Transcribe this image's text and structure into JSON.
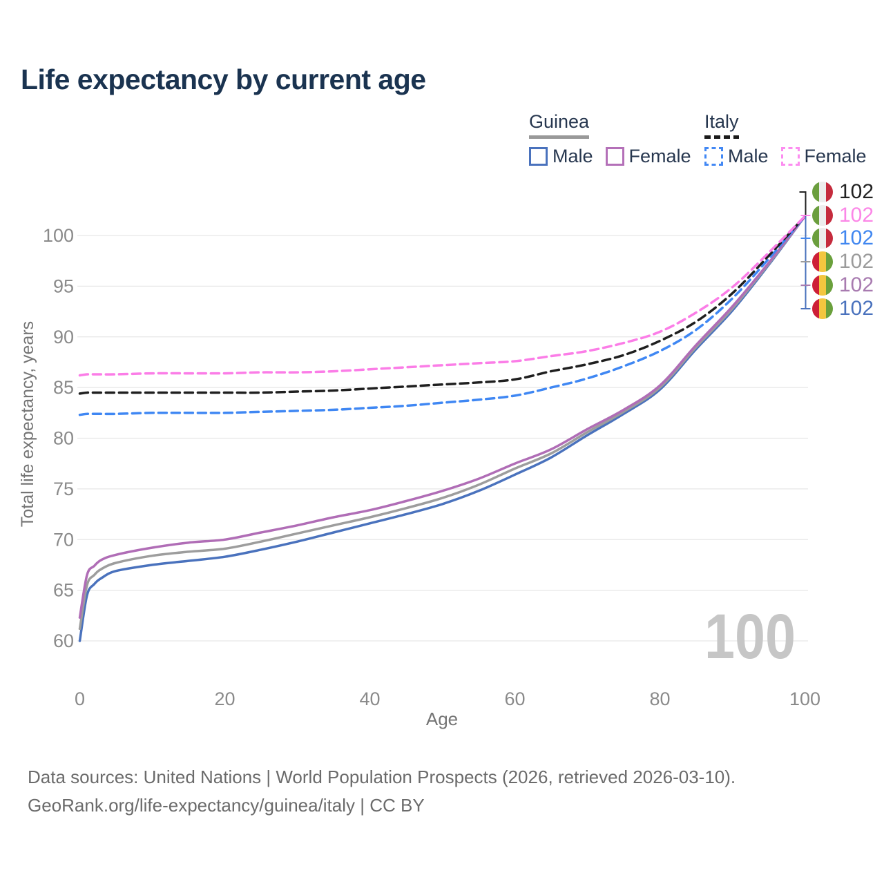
{
  "header": {
    "title": "Life expectancy by current age"
  },
  "legend": {
    "groups": [
      {
        "country": "Guinea",
        "underline_color": "#999999",
        "underline_dashed": false,
        "items": [
          {
            "label": "Male",
            "color": "#4a72bd",
            "dashed": false
          },
          {
            "label": "Female",
            "color": "#b470b8",
            "dashed": false
          }
        ]
      },
      {
        "country": "Italy",
        "underline_color": "#1a1a1a",
        "underline_dashed": true,
        "items": [
          {
            "label": "Male",
            "color": "#4288f4",
            "dashed": true
          },
          {
            "label": "Female",
            "color": "#fc8df0",
            "dashed": true
          }
        ]
      }
    ]
  },
  "flags": {
    "Italy": [
      "#6b9e3e",
      "#ededed",
      "#c52b3d"
    ],
    "Guinea": [
      "#cd1f37",
      "#f3c63f",
      "#6aa03c"
    ]
  },
  "end_labels": [
    {
      "country": "Italy",
      "value": "102",
      "color": "#222222"
    },
    {
      "country": "Italy",
      "value": "102",
      "color": "#fb87e7"
    },
    {
      "country": "Italy",
      "value": "102",
      "color": "#4187f0"
    },
    {
      "country": "Guinea",
      "value": "102",
      "color": "#9b9b9b"
    },
    {
      "country": "Guinea",
      "value": "102",
      "color": "#a87bb0"
    },
    {
      "country": "Guinea",
      "value": "102",
      "color": "#4a72bd"
    }
  ],
  "footer": {
    "line1": "Data sources: United Nations | World Population Prospects (2026, retrieved 2026-03-10).",
    "line2": "GeoRank.org/life-expectancy/guinea/italy | CC BY"
  },
  "chart_data": {
    "type": "line",
    "title": "Life expectancy by current age",
    "xlabel": "Age",
    "ylabel": "Total life expectancy, years",
    "watermark": "100",
    "grid": "horizontal-only",
    "legend_position": "top-right",
    "xlim": [
      0,
      100
    ],
    "ylim": [
      58,
      103
    ],
    "x_ticks": [
      0,
      20,
      40,
      60,
      80,
      100
    ],
    "y_ticks": [
      60,
      65,
      70,
      75,
      80,
      85,
      90,
      95,
      100
    ],
    "ages": [
      0,
      1,
      2,
      3,
      5,
      10,
      15,
      20,
      25,
      30,
      35,
      40,
      45,
      50,
      55,
      60,
      65,
      70,
      75,
      80,
      85,
      90,
      95,
      100
    ],
    "series": [
      {
        "name": "Guinea Male",
        "country": "Guinea",
        "sex": "Male",
        "style": "solid",
        "color": "#4a72bd",
        "end_value": 102,
        "values": [
          60.0,
          64.5,
          65.6,
          66.2,
          66.9,
          67.5,
          67.9,
          68.3,
          69.0,
          69.8,
          70.7,
          71.6,
          72.5,
          73.5,
          74.8,
          76.4,
          78.1,
          80.3,
          82.4,
          84.8,
          88.8,
          92.6,
          97.1,
          101.9
        ]
      },
      {
        "name": "Guinea Both sexes",
        "country": "Guinea",
        "sex": "Both sexes",
        "style": "solid",
        "color": "#9d9d9d",
        "end_value": 102,
        "values": [
          61.2,
          65.5,
          66.5,
          67.1,
          67.7,
          68.4,
          68.8,
          69.1,
          69.8,
          70.6,
          71.4,
          72.2,
          73.1,
          74.1,
          75.4,
          77.0,
          78.5,
          80.6,
          82.6,
          85.0,
          89.0,
          92.8,
          97.2,
          101.9
        ]
      },
      {
        "name": "Guinea Female",
        "country": "Guinea",
        "sex": "Female",
        "style": "solid",
        "color": "#b06db6",
        "end_value": 102,
        "values": [
          62.3,
          66.5,
          67.4,
          68.0,
          68.5,
          69.2,
          69.7,
          70.0,
          70.7,
          71.4,
          72.2,
          72.9,
          73.8,
          74.8,
          76.0,
          77.5,
          78.9,
          80.9,
          82.8,
          85.2,
          89.2,
          93.0,
          97.3,
          101.9
        ]
      },
      {
        "name": "Italy Male",
        "country": "Italy",
        "sex": "Male",
        "style": "dashed",
        "color": "#3f87f3",
        "end_value": 102,
        "values": [
          82.3,
          82.4,
          82.4,
          82.4,
          82.4,
          82.5,
          82.5,
          82.5,
          82.6,
          82.7,
          82.8,
          83.0,
          83.2,
          83.5,
          83.8,
          84.2,
          85.0,
          85.9,
          87.1,
          88.6,
          90.7,
          93.8,
          97.7,
          101.9
        ]
      },
      {
        "name": "Italy Both sexes",
        "country": "Italy",
        "sex": "Both sexes",
        "style": "dashed",
        "color": "#1f1f1f",
        "end_value": 102,
        "values": [
          84.4,
          84.5,
          84.5,
          84.5,
          84.5,
          84.5,
          84.5,
          84.5,
          84.5,
          84.6,
          84.7,
          84.9,
          85.1,
          85.3,
          85.5,
          85.8,
          86.6,
          87.3,
          88.2,
          89.6,
          91.5,
          94.3,
          98.0,
          101.9
        ]
      },
      {
        "name": "Italy Female",
        "country": "Italy",
        "sex": "Female",
        "style": "dashed",
        "color": "#fb7de7",
        "end_value": 102,
        "values": [
          86.2,
          86.3,
          86.3,
          86.3,
          86.3,
          86.4,
          86.4,
          86.4,
          86.5,
          86.5,
          86.6,
          86.8,
          87.0,
          87.2,
          87.4,
          87.6,
          88.1,
          88.6,
          89.4,
          90.5,
          92.4,
          94.9,
          98.3,
          101.9
        ]
      }
    ]
  }
}
